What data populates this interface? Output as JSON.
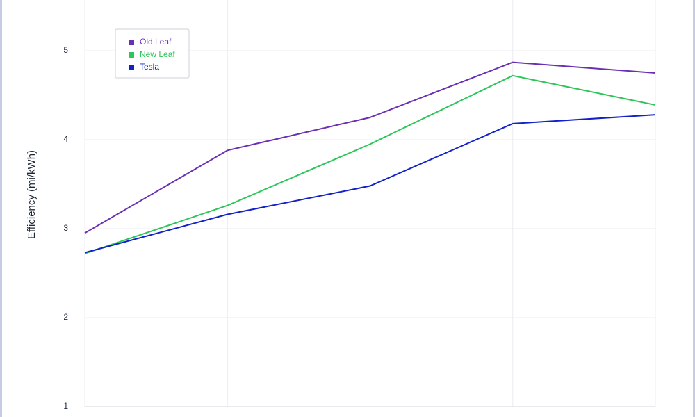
{
  "chart_data": {
    "type": "line",
    "y_label": "Efficiency (mi/kWh)",
    "categories": [
      null,
      null,
      null,
      null,
      null
    ],
    "series": [
      {
        "name": "Old Leaf",
        "color": "#6a30b4",
        "values": [
          2.95,
          3.88,
          4.25,
          4.87,
          4.75
        ]
      },
      {
        "name": "New Leaf",
        "color": "#2ec55a",
        "values": [
          2.72,
          3.26,
          3.95,
          4.72,
          4.39
        ]
      },
      {
        "name": "Tesla",
        "color": "#1222c6",
        "values": [
          2.73,
          3.16,
          3.48,
          4.18,
          4.28
        ]
      }
    ],
    "ylim": [
      1,
      5.57
    ],
    "yticks": [
      1,
      2,
      3,
      4,
      5
    ],
    "grid": true,
    "legend": "upper left"
  }
}
